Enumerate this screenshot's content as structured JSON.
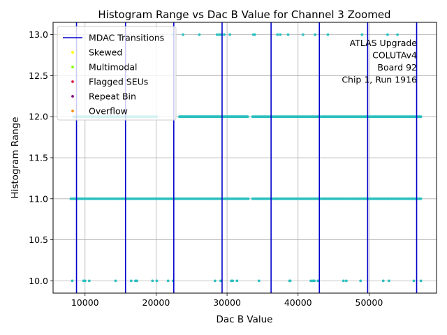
{
  "chart_data": {
    "type": "scatter",
    "title": "Histogram Range vs Dac B Value for Channel 3 Zoomed",
    "xlabel": "Dac B Value",
    "ylabel": "Histogram Range",
    "xlim": [
      5500,
      59500
    ],
    "ylim": [
      9.85,
      13.15
    ],
    "xticks": [
      10000,
      20000,
      30000,
      40000,
      50000
    ],
    "yticks": [
      10.0,
      10.5,
      11.0,
      11.5,
      12.0,
      12.5,
      13.0
    ],
    "xtick_labels": [
      "10000",
      "20000",
      "30000",
      "40000",
      "50000"
    ],
    "ytick_labels": [
      "10.0",
      "10.5",
      "11.0",
      "11.5",
      "12.0",
      "12.5",
      "13.0"
    ],
    "grid": true,
    "legend_position": "top-left",
    "legend": [
      {
        "label": "MDAC Transitions",
        "kind": "line",
        "color": "#0000cc"
      },
      {
        "label": "Skewed",
        "kind": "dot",
        "color": "#ffff00"
      },
      {
        "label": "Multimodal",
        "kind": "dot",
        "color": "#7fff00"
      },
      {
        "label": "Flagged SEUs",
        "kind": "dot",
        "color": "#dc143c"
      },
      {
        "label": "Repeat Bin",
        "kind": "dot",
        "color": "#800080"
      },
      {
        "label": "Overflow",
        "kind": "dot",
        "color": "#ff8c00"
      }
    ],
    "annotation": [
      "ATLAS Upgrade",
      "COLUTAv4",
      "Board 92",
      "Chip 1, Run 1916"
    ],
    "mdac_transitions": [
      8800,
      15700,
      22500,
      29300,
      36200,
      43000,
      49800,
      56700
    ],
    "point_color": "#2bbfbf",
    "series": [
      {
        "y": 10.0,
        "x": [
          8200,
          9800,
          10000,
          10600,
          14300,
          16500,
          17100,
          17300,
          19500,
          20100,
          21700,
          22400,
          28300,
          29100,
          30600,
          30800,
          31400,
          34500,
          38800,
          38900,
          41800,
          42100,
          42300,
          42800,
          46400,
          46800,
          48800,
          52000,
          52800,
          56300,
          57300
        ]
      },
      {
        "y": 11.0,
        "segments": [
          [
            8000,
            33000,
            120
          ],
          [
            33600,
            57300,
            120
          ]
        ]
      },
      {
        "y": 12.0,
        "segments": [
          [
            8400,
            20100,
            45
          ],
          [
            23300,
            32900,
            90
          ],
          [
            33600,
            57300,
            140
          ]
        ]
      },
      {
        "y": 13.0,
        "x": [
          22400,
          23800,
          26100,
          28600,
          28900,
          29200,
          29600,
          30400,
          33700,
          33900,
          37100,
          37500,
          38600,
          40700,
          42400,
          44200,
          49000,
          52600,
          54000
        ]
      }
    ]
  }
}
